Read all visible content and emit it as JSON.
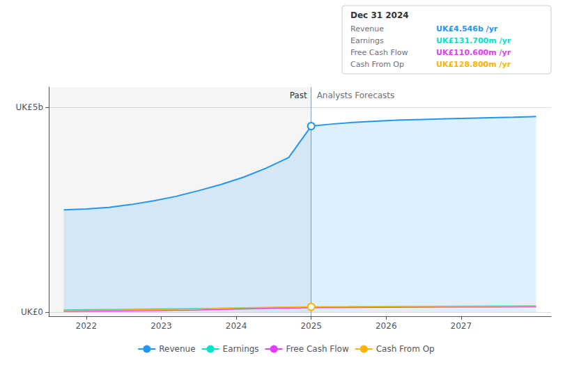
{
  "chart_data": {
    "type": "line",
    "xlim": [
      2021.5,
      2028.2
    ],
    "xticks": [
      2022,
      2023,
      2024,
      2025,
      2026,
      2027
    ],
    "ylim": [
      -0.1,
      5.5
    ],
    "yticks": [
      {
        "value": 0,
        "label": "UK£0"
      },
      {
        "value": 5,
        "label": "UK£5b"
      }
    ],
    "grid": true,
    "legend": "bottom",
    "series": [
      {
        "name": "Revenue",
        "color": "#2196f3",
        "type": "area",
        "x": [
          2021.7,
          2022.0,
          2022.3,
          2022.6,
          2022.9,
          2023.2,
          2023.5,
          2023.8,
          2024.1,
          2024.4,
          2024.7,
          2025.0,
          2025.3,
          2025.6,
          2025.9,
          2026.2,
          2026.5,
          2026.8,
          2027.1,
          2027.4,
          2027.7,
          2028.0
        ],
        "values": [
          2.5,
          2.52,
          2.56,
          2.63,
          2.72,
          2.83,
          2.97,
          3.12,
          3.3,
          3.52,
          3.78,
          4.546,
          4.6,
          4.64,
          4.67,
          4.695,
          4.71,
          4.725,
          4.738,
          4.75,
          4.762,
          4.78
        ]
      },
      {
        "name": "Earnings",
        "color": "#00e5cc",
        "type": "line",
        "x": [
          2021.7,
          2022.0,
          2022.5,
          2023.0,
          2023.5,
          2024.0,
          2024.5,
          2025.0,
          2025.5,
          2026.0,
          2026.5,
          2027.0,
          2027.5,
          2028.0
        ],
        "values": [
          0.055,
          0.06,
          0.068,
          0.078,
          0.088,
          0.098,
          0.112,
          0.1317,
          0.133,
          0.138,
          0.142,
          0.146,
          0.149,
          0.152
        ]
      },
      {
        "name": "Free Cash Flow",
        "color": "#e040fb",
        "type": "line",
        "x": [
          2021.7,
          2022.0,
          2022.5,
          2023.0,
          2023.5,
          2024.0,
          2024.5,
          2025.0,
          2025.5,
          2026.0,
          2026.5,
          2027.0,
          2027.5,
          2028.0
        ],
        "values": [
          0.02,
          0.025,
          0.032,
          0.04,
          0.055,
          0.075,
          0.095,
          0.1106,
          0.112,
          0.116,
          0.12,
          0.124,
          0.127,
          0.13
        ]
      },
      {
        "name": "Cash From Op",
        "color": "#ffb300",
        "type": "line",
        "x": [
          2021.7,
          2022.0,
          2022.5,
          2023.0,
          2023.5,
          2024.0,
          2024.5,
          2025.0,
          2025.5,
          2026.0,
          2026.5,
          2027.0,
          2027.5,
          2028.0
        ],
        "values": [
          0.04,
          0.045,
          0.052,
          0.06,
          0.08,
          0.105,
          0.12,
          0.1288,
          0.131,
          0.135,
          0.138,
          0.141,
          0.144,
          0.146
        ]
      }
    ],
    "divider_x": 2025.0,
    "region_labels": {
      "before": "Past",
      "after": "Analysts Forecasts"
    },
    "highlight_points": [
      {
        "series": "Revenue",
        "x": 2025.0,
        "y": 4.546
      },
      {
        "series": "Cash From Op",
        "x": 2025.0,
        "y": 0.1288
      }
    ],
    "tooltip": {
      "title": "Dec 31 2024",
      "rows": [
        {
          "label": "Revenue",
          "value": "UK£4.546b /yr",
          "color": "#2196f3"
        },
        {
          "label": "Earnings",
          "value": "UK£131.700m /yr",
          "color": "#00e5cc"
        },
        {
          "label": "Free Cash Flow",
          "value": "UK£110.600m /yr",
          "color": "#e040fb"
        },
        {
          "label": "Cash From Op",
          "value": "UK£128.800m /yr",
          "color": "#ffb300"
        }
      ]
    }
  }
}
